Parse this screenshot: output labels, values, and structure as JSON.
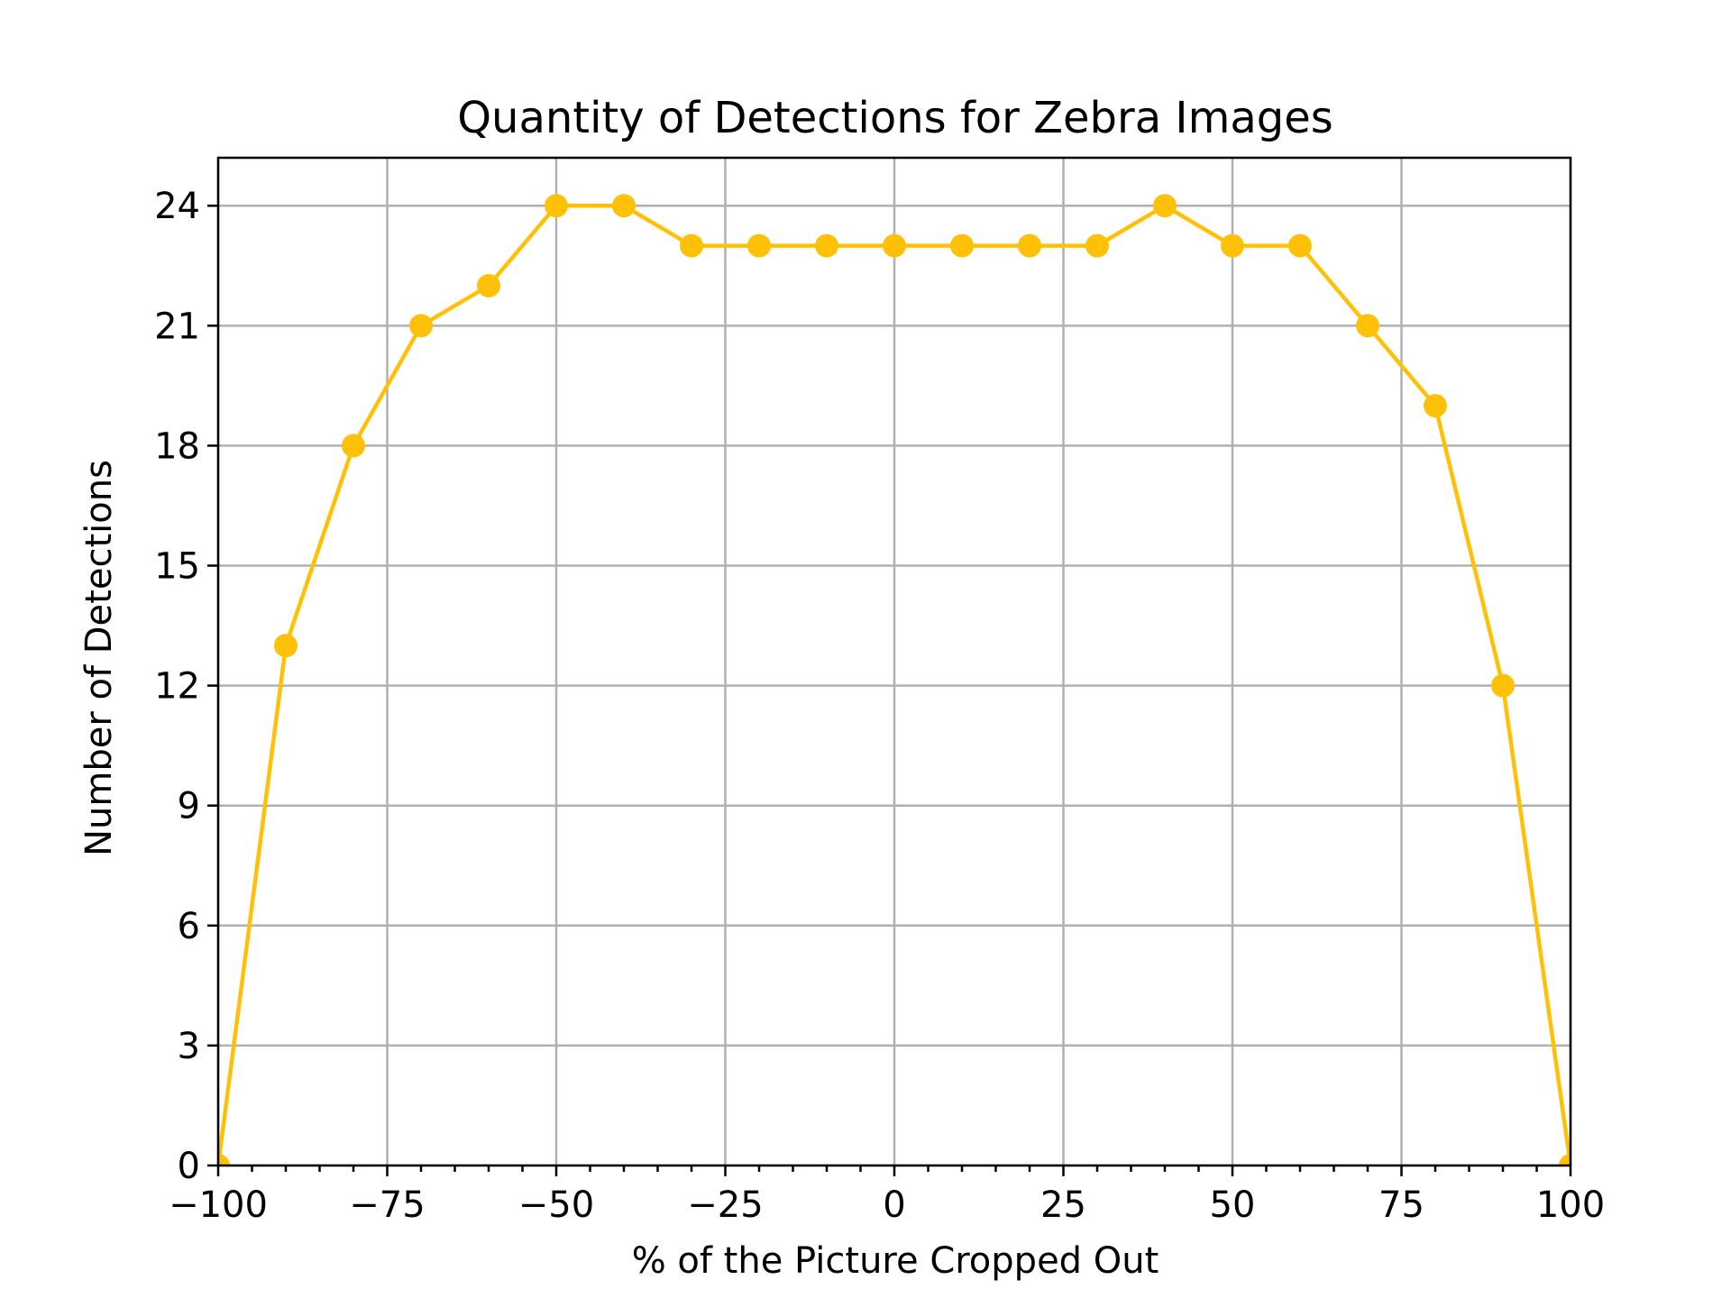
{
  "chart_data": {
    "type": "line",
    "title": "Quantity of Detections for Zebra Images",
    "xlabel": "% of the Picture Cropped Out",
    "ylabel": "Number of Detections",
    "xlim": [
      -100,
      100
    ],
    "ylim": [
      0,
      25.2
    ],
    "x_ticks": [
      -100,
      -75,
      -50,
      -25,
      0,
      25,
      50,
      75,
      100
    ],
    "x_tick_labels": [
      "−100",
      "−75",
      "−50",
      "−25",
      "0",
      "25",
      "50",
      "75",
      "100"
    ],
    "y_ticks": [
      0,
      3,
      6,
      9,
      12,
      15,
      18,
      21,
      24
    ],
    "y_tick_labels": [
      "0",
      "3",
      "6",
      "9",
      "12",
      "15",
      "18",
      "21",
      "24"
    ],
    "grid": true,
    "series": [
      {
        "color": "#FFC107",
        "x": [
          -100,
          -90,
          -80,
          -70,
          -60,
          -50,
          -40,
          -30,
          -20,
          -10,
          0,
          10,
          20,
          30,
          40,
          50,
          60,
          70,
          80,
          90,
          100
        ],
        "y": [
          0,
          13,
          18,
          21,
          22,
          24,
          24,
          23,
          23,
          23,
          23,
          23,
          23,
          23,
          24,
          23,
          23,
          21,
          19,
          12,
          0
        ]
      }
    ]
  }
}
